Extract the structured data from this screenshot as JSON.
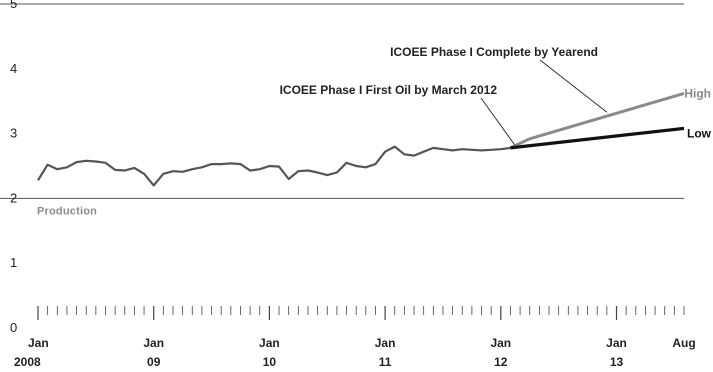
{
  "chart_data": {
    "type": "line",
    "title": "",
    "xlabel": "",
    "ylabel": "",
    "ylim": [
      0,
      5
    ],
    "y_ticks": [
      0,
      1,
      2,
      3,
      4,
      5
    ],
    "xlim": [
      "2008-01",
      "2013-08"
    ],
    "x_ticks": [
      {
        "date": "2008-01",
        "label": [
          "Jan",
          "2008"
        ]
      },
      {
        "date": "2009-01",
        "label": [
          "Jan",
          "09"
        ]
      },
      {
        "date": "2010-01",
        "label": [
          "Jan",
          "10"
        ]
      },
      {
        "date": "2011-01",
        "label": [
          "Jan",
          "11"
        ]
      },
      {
        "date": "2012-01",
        "label": [
          "Jan",
          "12"
        ]
      },
      {
        "date": "2013-01",
        "label": [
          "Jan",
          "13"
        ]
      },
      {
        "date": "2013-08",
        "label": [
          "Aug",
          ""
        ]
      }
    ],
    "grid": "horizontal at 2 and 5",
    "series": [
      {
        "name": "Production",
        "color": "#555555",
        "points": [
          [
            "2008-01",
            2.28
          ],
          [
            "2008-02",
            2.52
          ],
          [
            "2008-03",
            2.45
          ],
          [
            "2008-04",
            2.48
          ],
          [
            "2008-05",
            2.56
          ],
          [
            "2008-06",
            2.58
          ],
          [
            "2008-07",
            2.57
          ],
          [
            "2008-08",
            2.55
          ],
          [
            "2008-09",
            2.44
          ],
          [
            "2008-10",
            2.43
          ],
          [
            "2008-11",
            2.47
          ],
          [
            "2008-12",
            2.38
          ],
          [
            "2009-01",
            2.2
          ],
          [
            "2009-02",
            2.38
          ],
          [
            "2009-03",
            2.42
          ],
          [
            "2009-04",
            2.41
          ],
          [
            "2009-05",
            2.45
          ],
          [
            "2009-06",
            2.48
          ],
          [
            "2009-07",
            2.53
          ],
          [
            "2009-08",
            2.53
          ],
          [
            "2009-09",
            2.54
          ],
          [
            "2009-10",
            2.53
          ],
          [
            "2009-11",
            2.43
          ],
          [
            "2009-12",
            2.45
          ],
          [
            "2010-01",
            2.5
          ],
          [
            "2010-02",
            2.49
          ],
          [
            "2010-03",
            2.3
          ],
          [
            "2010-04",
            2.42
          ],
          [
            "2010-05",
            2.43
          ],
          [
            "2010-06",
            2.4
          ],
          [
            "2010-07",
            2.36
          ],
          [
            "2010-08",
            2.4
          ],
          [
            "2010-09",
            2.55
          ],
          [
            "2010-10",
            2.5
          ],
          [
            "2010-11",
            2.48
          ],
          [
            "2010-12",
            2.53
          ],
          [
            "2011-01",
            2.72
          ],
          [
            "2011-02",
            2.8
          ],
          [
            "2011-03",
            2.68
          ],
          [
            "2011-04",
            2.66
          ],
          [
            "2011-05",
            2.72
          ],
          [
            "2011-06",
            2.78
          ],
          [
            "2011-07",
            2.76
          ],
          [
            "2011-08",
            2.74
          ],
          [
            "2011-09",
            2.76
          ],
          [
            "2011-10",
            2.75
          ],
          [
            "2011-11",
            2.74
          ],
          [
            "2011-12",
            2.75
          ],
          [
            "2012-01",
            2.76
          ],
          [
            "2012-02",
            2.78
          ]
        ]
      },
      {
        "name": "High",
        "color": "#8a8a8a",
        "points": [
          [
            "2012-02",
            2.78
          ],
          [
            "2012-04",
            2.92
          ],
          [
            "2013-08",
            3.62
          ]
        ]
      },
      {
        "name": "Low",
        "color": "#111111",
        "points": [
          [
            "2012-02",
            2.78
          ],
          [
            "2013-08",
            3.08
          ]
        ]
      }
    ],
    "annotations": [
      {
        "text": "ICOEE Phase I First Oil by March 2012",
        "target": [
          "2012-02",
          2.8
        ]
      },
      {
        "text": "ICOEE Phase I Complete by Yearend",
        "target": [
          "2012-12",
          3.33
        ]
      }
    ]
  }
}
